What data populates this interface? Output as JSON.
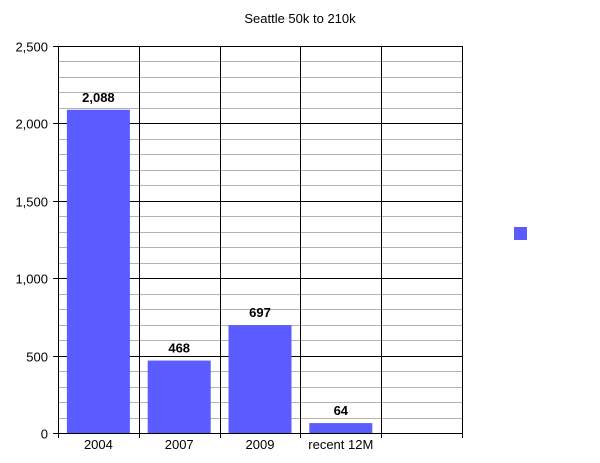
{
  "chart_data": {
    "type": "bar",
    "title": "Seattle 50k to 210k",
    "xlabel": "",
    "ylabel": "",
    "categories": [
      "2004",
      "2007",
      "2009",
      "recent 12M",
      ""
    ],
    "series": [
      {
        "values": [
          2088,
          468,
          697,
          64,
          null
        ]
      }
    ],
    "data_labels": [
      "2,088",
      "468",
      "697",
      "64",
      ""
    ],
    "ylim": [
      0,
      2500
    ],
    "yticks": [
      0,
      500,
      1000,
      1500,
      2000,
      2500
    ],
    "ytick_labels": [
      "0",
      "500",
      "1,000",
      "1,500",
      "2,000",
      "2,500"
    ],
    "minor_gridlines_per_major": 5,
    "grid": true,
    "legend": {
      "position": "right",
      "entries": [
        ""
      ]
    },
    "colors": {
      "bar": "#5a5cff",
      "major_grid": "#000000",
      "minor_grid": "#b3b3b3"
    }
  }
}
